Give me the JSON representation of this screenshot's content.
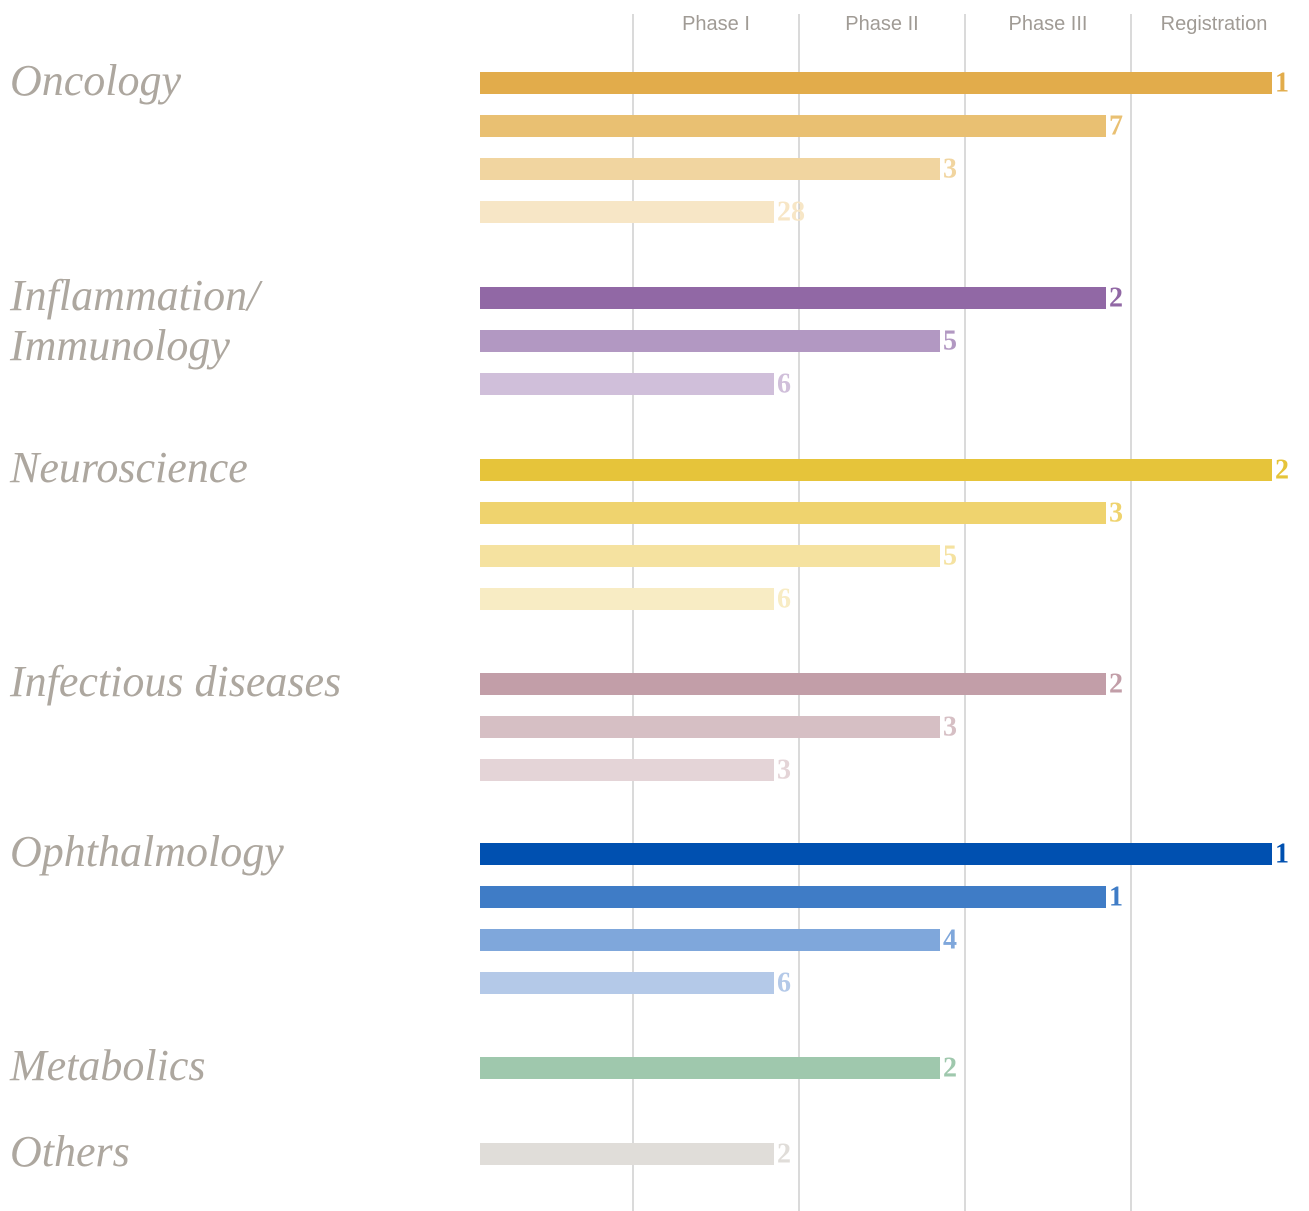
{
  "phases": [
    "Phase I",
    "Phase II",
    "Phase III",
    "Registration"
  ],
  "areas": [
    {
      "name_lines": [
        "Oncology"
      ],
      "rows": [
        {
          "phase": 3,
          "count": 1,
          "color": "#e2ac4b"
        },
        {
          "phase": 2,
          "count": 7,
          "color": "#e9c072"
        },
        {
          "phase": 1,
          "count": 3,
          "color": "#f1d5a0"
        },
        {
          "phase": 0,
          "count": 28,
          "color": "#f7e6c6"
        }
      ]
    },
    {
      "name_lines": [
        "Inflammation/",
        "Immunology"
      ],
      "rows": [
        {
          "phase": 2,
          "count": 2,
          "color": "#9168a5"
        },
        {
          "phase": 1,
          "count": 5,
          "color": "#b298c2"
        },
        {
          "phase": 0,
          "count": 6,
          "color": "#d0bfda"
        }
      ]
    },
    {
      "name_lines": [
        "Neuroscience"
      ],
      "rows": [
        {
          "phase": 3,
          "count": 2,
          "color": "#e6c43a"
        },
        {
          "phase": 2,
          "count": 3,
          "color": "#efd36e"
        },
        {
          "phase": 1,
          "count": 5,
          "color": "#f5e2a0"
        },
        {
          "phase": 0,
          "count": 6,
          "color": "#f8ecc4"
        }
      ]
    },
    {
      "name_lines": [
        "Infectious diseases"
      ],
      "rows": [
        {
          "phase": 2,
          "count": 2,
          "color": "#c29ea8"
        },
        {
          "phase": 1,
          "count": 3,
          "color": "#d6bfc4"
        },
        {
          "phase": 0,
          "count": 3,
          "color": "#e4d4d7"
        }
      ]
    },
    {
      "name_lines": [
        "Ophthalmology"
      ],
      "rows": [
        {
          "phase": 3,
          "count": 1,
          "color": "#0050b0"
        },
        {
          "phase": 2,
          "count": 1,
          "color": "#3f7cc6"
        },
        {
          "phase": 1,
          "count": 4,
          "color": "#7fa7db"
        },
        {
          "phase": 0,
          "count": 6,
          "color": "#b4c9e8"
        }
      ]
    },
    {
      "name_lines": [
        "Metabolics"
      ],
      "rows": [
        {
          "phase": 1,
          "count": 2,
          "color": "#9fc8ad"
        }
      ]
    },
    {
      "name_lines": [
        "Others"
      ],
      "rows": [
        {
          "phase": 0,
          "count": 2,
          "color": "#e0ddd9"
        }
      ]
    }
  ]
}
